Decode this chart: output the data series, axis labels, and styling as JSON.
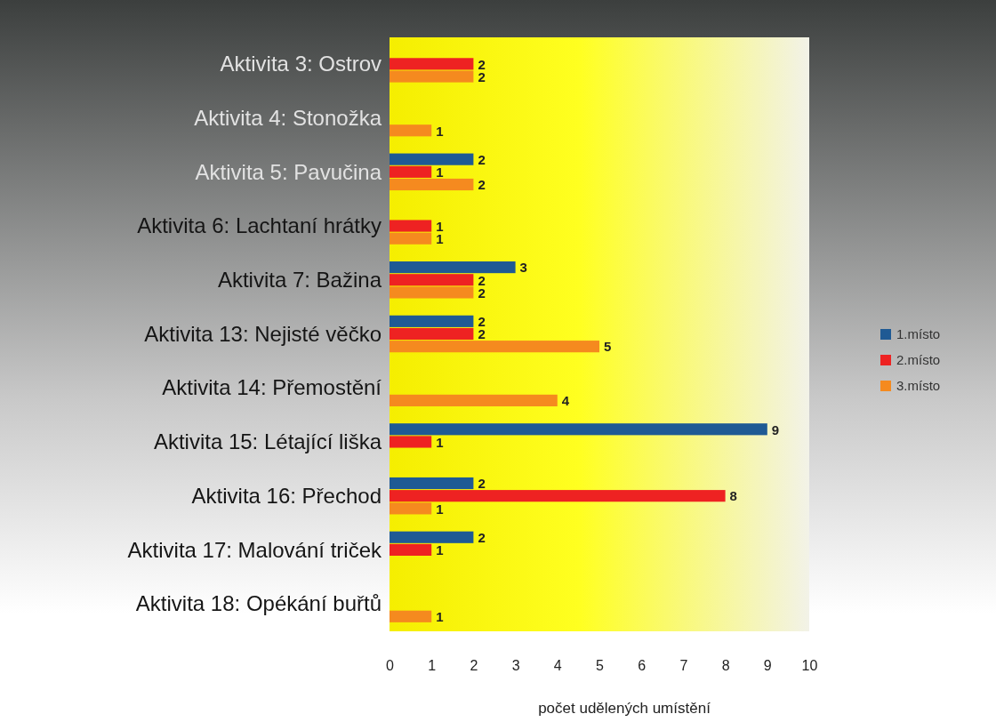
{
  "chart_data": {
    "type": "bar",
    "orientation": "horizontal",
    "xlabel": "počet udělených umístění",
    "categories": [
      "Aktivita 3: Ostrov",
      "Aktivita 4: Stonožka",
      "Aktivita 5: Pavučina",
      "Aktivita 6: Lachtaní hrátky",
      "Aktivita 7: Bažina",
      "Aktivita 13: Nejisté věčko",
      "Aktivita 14: Přemostění",
      "Aktivita 15: Létající liška",
      "Aktivita 16: Přechod",
      "Aktivita 17: Malování triček",
      "Aktivita 18: Opékání buřtů"
    ],
    "series": [
      {
        "name": "1.místo",
        "color": "#1f5a94",
        "values": [
          null,
          null,
          2,
          null,
          3,
          2,
          null,
          9,
          2,
          2,
          null
        ]
      },
      {
        "name": "2.místo",
        "color": "#ee2222",
        "values": [
          2,
          null,
          1,
          1,
          2,
          2,
          null,
          1,
          8,
          1,
          null
        ]
      },
      {
        "name": "3.místo",
        "color": "#f58a1f",
        "values": [
          2,
          1,
          2,
          1,
          2,
          5,
          4,
          null,
          1,
          null,
          1
        ]
      }
    ],
    "xlim": [
      0,
      10
    ],
    "xticks": [
      0,
      1,
      2,
      3,
      4,
      5,
      6,
      7,
      8,
      9,
      10
    ],
    "data_labels": true,
    "legend": "right",
    "grid": false
  }
}
